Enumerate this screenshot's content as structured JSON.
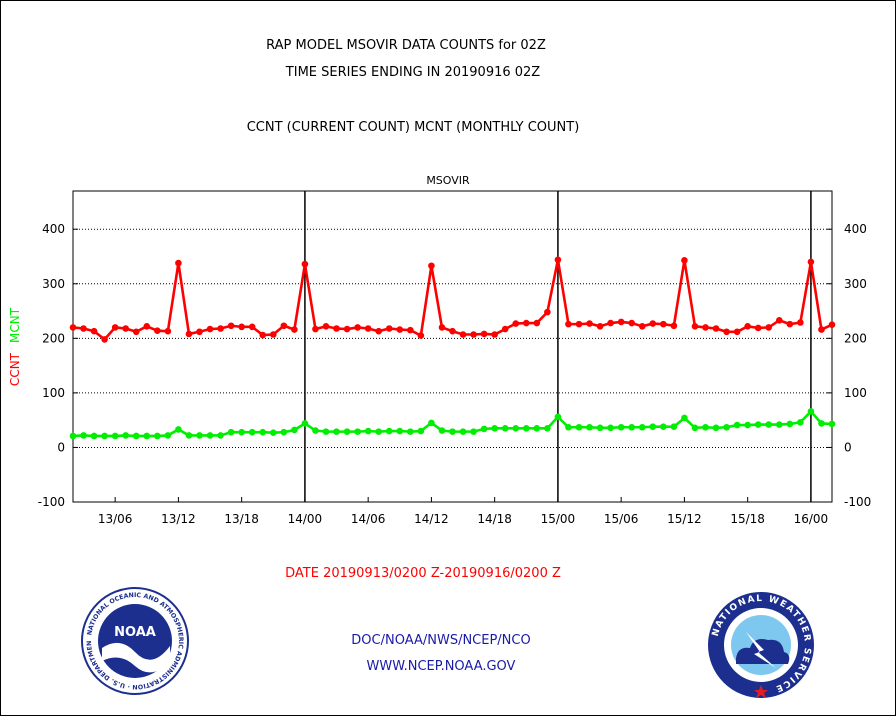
{
  "header": {
    "title_line1": "RAP MODEL MSOVIR DATA COUNTS for 02Z",
    "title_line2": "TIME SERIES ENDING IN 20190916 02Z",
    "subtitle": "CCNT (CURRENT COUNT) MCNT (MONTHLY COUNT)"
  },
  "footer": {
    "date_range": "DATE 20190913/0200 Z-20190916/0200 Z",
    "org_line": "DOC/NOAA/NWS/NCEP/NCO",
    "url_line": "WWW.NCEP.NOAA.GOV",
    "noaa_logo_text": "NOAA",
    "noaa_ring_text": "NATIONAL OCEANIC AND ATMOSPHERIC ADMINISTRATION · U.S. DEPARTMENT OF COMMERCE",
    "nws_ring_text": "NATIONAL WEATHER SERVICE"
  },
  "colors": {
    "ccnt": "#ff0000",
    "mcnt": "#00ee00",
    "title": "#000000",
    "footer_blue": "#1a1aa8",
    "date_red": "#ff0000"
  },
  "chart_data": {
    "type": "line",
    "title": "MSOVIR",
    "ylabel_parts": [
      {
        "text": "CCNT",
        "color": "#ff0000"
      },
      {
        "text": "MCNT",
        "color": "#00ee00"
      }
    ],
    "x_range_hours": [
      0,
      72
    ],
    "x_tick_labels": [
      "13/06",
      "13/12",
      "13/18",
      "14/00",
      "14/06",
      "14/12",
      "14/18",
      "15/00",
      "15/06",
      "15/12",
      "15/18",
      "16/00"
    ],
    "x_tick_hours": [
      4,
      10,
      16,
      22,
      28,
      34,
      40,
      46,
      52,
      58,
      64,
      70
    ],
    "day_boundaries_hours": [
      22,
      46,
      70
    ],
    "ylim": [
      -100,
      470
    ],
    "y_ticks": [
      -100,
      0,
      100,
      200,
      300,
      400
    ],
    "grid_y": [
      0,
      100,
      200,
      300,
      400
    ],
    "series": [
      {
        "name": "CCNT",
        "color": "#ff0000",
        "values": [
          220,
          218,
          213,
          198,
          220,
          218,
          212,
          222,
          214,
          213,
          338,
          208,
          212,
          217,
          218,
          223,
          221,
          221,
          206,
          207,
          223,
          216,
          336,
          217,
          222,
          218,
          217,
          220,
          218,
          213,
          218,
          216,
          215,
          205,
          333,
          220,
          213,
          207,
          207,
          208,
          207,
          217,
          227,
          228,
          228,
          248,
          344,
          226,
          226,
          227,
          222,
          228,
          230,
          228,
          222,
          227,
          226,
          223,
          343,
          222,
          220,
          218,
          212,
          212,
          222,
          219,
          220,
          233,
          226,
          229,
          340,
          216,
          225
        ]
      },
      {
        "name": "MCNT",
        "color": "#00ee00",
        "values": [
          21,
          22,
          21,
          21,
          21,
          22,
          21,
          21,
          21,
          22,
          33,
          22,
          22,
          22,
          22,
          28,
          28,
          28,
          28,
          27,
          28,
          32,
          44,
          31,
          29,
          29,
          29,
          29,
          30,
          29,
          30,
          30,
          29,
          30,
          45,
          31,
          29,
          29,
          29,
          34,
          35,
          35,
          35,
          35,
          35,
          35,
          56,
          37,
          37,
          37,
          36,
          36,
          37,
          37,
          37,
          38,
          38,
          38,
          54,
          36,
          37,
          36,
          37,
          41,
          41,
          42,
          42,
          42,
          43,
          46,
          66,
          44,
          43
        ]
      }
    ]
  }
}
